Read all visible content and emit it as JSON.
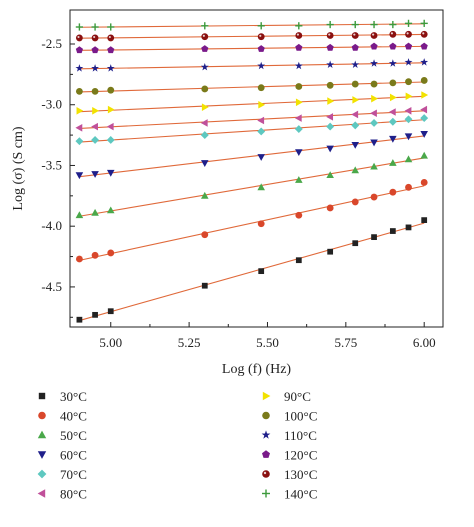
{
  "chart_data": {
    "type": "scatter",
    "title": "",
    "xlabel": "Log (f) (Hz)",
    "ylabel": "Log (σ) (S cm)",
    "xlim": [
      4.87,
      6.06
    ],
    "ylim": [
      -4.83,
      -2.22
    ],
    "xticks": [
      "5.00",
      "5.25",
      "5.50",
      "5.75",
      "6.00"
    ],
    "yticks": [
      "-2.5",
      "-3.0",
      "-3.5",
      "-4.0",
      "-4.5"
    ],
    "grid": false,
    "legend_position": "bottom",
    "fit_lines": true,
    "fit_line_color": "#e0693a",
    "x": [
      4.9,
      4.95,
      5.0,
      5.3,
      5.48,
      5.6,
      5.7,
      5.78,
      5.84,
      5.9,
      5.95,
      6.0
    ],
    "series": [
      {
        "name": "30°C",
        "marker": "square",
        "color": "#222222",
        "values": [
          -4.77,
          -4.73,
          -4.7,
          -4.49,
          -4.37,
          -4.28,
          -4.21,
          -4.14,
          -4.09,
          -4.04,
          -4.01,
          -3.95
        ]
      },
      {
        "name": "40°C",
        "marker": "circle",
        "color": "#d9472b",
        "values": [
          -4.27,
          -4.24,
          -4.22,
          -4.07,
          -3.98,
          -3.91,
          -3.85,
          -3.8,
          -3.76,
          -3.72,
          -3.68,
          -3.64
        ]
      },
      {
        "name": "50°C",
        "marker": "triangle-up",
        "color": "#4aa84a",
        "values": [
          -3.91,
          -3.89,
          -3.87,
          -3.75,
          -3.68,
          -3.62,
          -3.58,
          -3.54,
          -3.51,
          -3.48,
          -3.45,
          -3.42
        ]
      },
      {
        "name": "60°C",
        "marker": "triangle-down",
        "color": "#1f1f8a",
        "values": [
          -3.58,
          -3.57,
          -3.56,
          -3.48,
          -3.43,
          -3.39,
          -3.36,
          -3.33,
          -3.31,
          -3.28,
          -3.26,
          -3.24
        ]
      },
      {
        "name": "70°C",
        "marker": "diamond",
        "color": "#5ec8c0",
        "values": [
          -3.3,
          -3.29,
          -3.29,
          -3.25,
          -3.22,
          -3.2,
          -3.18,
          -3.17,
          -3.15,
          -3.14,
          -3.12,
          -3.11
        ]
      },
      {
        "name": "80°C",
        "marker": "triangle-left",
        "color": "#c0509a",
        "values": [
          -3.19,
          -3.18,
          -3.18,
          -3.15,
          -3.13,
          -3.11,
          -3.1,
          -3.08,
          -3.07,
          -3.06,
          -3.05,
          -3.04
        ]
      },
      {
        "name": "90°C",
        "marker": "triangle-right",
        "color": "#f2e200",
        "values": [
          -3.05,
          -3.05,
          -3.04,
          -3.02,
          -3.0,
          -2.98,
          -2.97,
          -2.96,
          -2.95,
          -2.94,
          -2.93,
          -2.92
        ]
      },
      {
        "name": "100°C",
        "marker": "circle",
        "color": "#7a7a1a",
        "values": [
          -2.89,
          -2.89,
          -2.88,
          -2.87,
          -2.86,
          -2.85,
          -2.84,
          -2.83,
          -2.83,
          -2.82,
          -2.81,
          -2.8
        ]
      },
      {
        "name": "110°C",
        "marker": "star",
        "color": "#1f1f8a",
        "values": [
          -2.7,
          -2.7,
          -2.7,
          -2.69,
          -2.68,
          -2.68,
          -2.67,
          -2.67,
          -2.66,
          -2.66,
          -2.65,
          -2.65
        ]
      },
      {
        "name": "120°C",
        "marker": "pentagon",
        "color": "#7a1a8a",
        "values": [
          -2.55,
          -2.55,
          -2.55,
          -2.54,
          -2.54,
          -2.53,
          -2.53,
          -2.53,
          -2.52,
          -2.52,
          -2.52,
          -2.52
        ]
      },
      {
        "name": "130°C",
        "marker": "circle-dot",
        "color": "#8a1010",
        "values": [
          -2.45,
          -2.45,
          -2.45,
          -2.44,
          -2.44,
          -2.43,
          -2.43,
          -2.43,
          -2.43,
          -2.42,
          -2.42,
          -2.42
        ]
      },
      {
        "name": "140°C",
        "marker": "plus",
        "color": "#3c9a3c",
        "values": [
          -2.36,
          -2.36,
          -2.36,
          -2.35,
          -2.35,
          -2.35,
          -2.34,
          -2.34,
          -2.34,
          -2.34,
          -2.33,
          -2.33
        ]
      }
    ]
  }
}
